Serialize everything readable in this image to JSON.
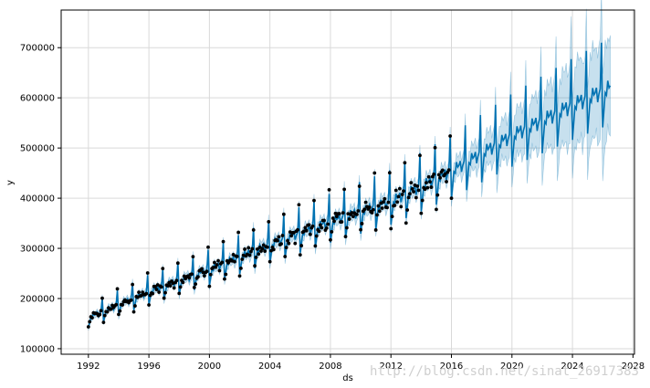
{
  "chart_data": {
    "type": "line",
    "xlabel": "ds",
    "ylabel": "y",
    "xlim": [
      1990.2,
      2028.1
    ],
    "ylim": [
      89000,
      775000
    ],
    "xticks": [
      1992,
      1996,
      2000,
      2004,
      2008,
      2012,
      2016,
      2020,
      2024,
      2028
    ],
    "yticks": [
      100000,
      200000,
      300000,
      400000,
      500000,
      600000,
      700000
    ],
    "grid": true,
    "legend": "none",
    "colors": {
      "forecast_line": "#0072B2",
      "uncertainty_band": "#0072B2",
      "observed_points": "#000000",
      "grid": "#d9d9d9"
    },
    "observed_range": [
      1992.0,
      2016.0
    ],
    "forecast_range": [
      1992.0,
      2026.5
    ],
    "trend": {
      "x": [
        1992,
        1996,
        2000,
        2004,
        2008,
        2012,
        2016,
        2020,
        2024,
        2026.5
      ],
      "y": [
        160000,
        212000,
        255000,
        305000,
        350000,
        390000,
        450000,
        520000,
        580000,
        615000
      ]
    },
    "watermark": "http://blog.csdn.net/sinat_26917383"
  }
}
